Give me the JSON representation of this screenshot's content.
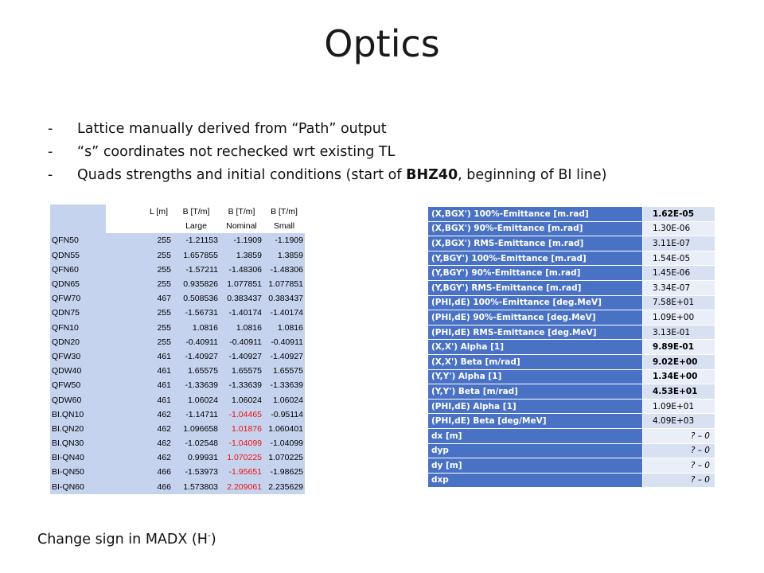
{
  "title": "Optics",
  "bullets": [
    {
      "text": "Lattice manually derived from “Path” output",
      "bold": ""
    },
    {
      "text": "“s” coordinates not rechecked wrt existing TL",
      "bold": ""
    },
    {
      "text": "Quads strengths and initial conditions (start of ",
      "bold": "BHZ40",
      "tail": ", beginning of BI line)"
    }
  ],
  "left_table": {
    "header1": [
      "",
      "L [m]",
      "B [T/m]",
      "B [T/m]",
      "B [T/m]"
    ],
    "header2": [
      "",
      "",
      "Large",
      "Nominal",
      "Small"
    ],
    "rows": [
      {
        "name": "QFN50",
        "L": "255",
        "large": "-1.21153",
        "nominal": "-1.1909",
        "small": "-1.1909",
        "red": false
      },
      {
        "name": "QDN55",
        "L": "255",
        "large": "1.657855",
        "nominal": "1.3859",
        "small": "1.3859",
        "red": false
      },
      {
        "name": "QFN60",
        "L": "255",
        "large": "-1.57211",
        "nominal": "-1.48306",
        "small": "-1.48306",
        "red": false
      },
      {
        "name": "QDN65",
        "L": "255",
        "large": "0.935826",
        "nominal": "1.077851",
        "small": "1.077851",
        "red": false
      },
      {
        "name": "QFW70",
        "L": "467",
        "large": "0.508536",
        "nominal": "0.383437",
        "small": "0.383437",
        "red": false
      },
      {
        "name": "QDN75",
        "L": "255",
        "large": "-1.56731",
        "nominal": "-1.40174",
        "small": "-1.40174",
        "red": false
      },
      {
        "name": "QFN10",
        "L": "255",
        "large": "1.0816",
        "nominal": "1.0816",
        "small": "1.0816",
        "red": false
      },
      {
        "name": "QDN20",
        "L": "255",
        "large": "-0.40911",
        "nominal": "-0.40911",
        "small": "-0.40911",
        "red": false
      },
      {
        "name": "QFW30",
        "L": "461",
        "large": "-1.40927",
        "nominal": "-1.40927",
        "small": "-1.40927",
        "red": false
      },
      {
        "name": "QDW40",
        "L": "461",
        "large": "1.65575",
        "nominal": "1.65575",
        "small": "1.65575",
        "red": false
      },
      {
        "name": "QFW50",
        "L": "461",
        "large": "-1.33639",
        "nominal": "-1.33639",
        "small": "-1.33639",
        "red": false
      },
      {
        "name": "QDW60",
        "L": "461",
        "large": "1.06024",
        "nominal": "1.06024",
        "small": "1.06024",
        "red": false
      },
      {
        "name": "BI.QN10",
        "L": "462",
        "large": "-1.14711",
        "nominal": "-1.04465",
        "small": "-0.95114",
        "red": true
      },
      {
        "name": "BI.QN20",
        "L": "462",
        "large": "1.096658",
        "nominal": "1.01876",
        "small": "1.060401",
        "red": true
      },
      {
        "name": "BI.QN30",
        "L": "462",
        "large": "-1.02548",
        "nominal": "-1.04099",
        "small": "-1.04099",
        "red": true
      },
      {
        "name": "BI-QN40",
        "L": "462",
        "large": "0.99931",
        "nominal": "1.070225",
        "small": "1.070225",
        "red": true
      },
      {
        "name": "BI-QN50",
        "L": "466",
        "large": "-1.53973",
        "nominal": "-1.95651",
        "small": "-1.98625",
        "red": true
      },
      {
        "name": "BI-QN60",
        "L": "466",
        "large": "1.573803",
        "nominal": "2.209061",
        "small": "2.235629",
        "red": true
      }
    ],
    "colors": {
      "highlight": "#c5d3ee",
      "red": "#ee1111"
    }
  },
  "right_table": {
    "rows": [
      {
        "label": "(X,BGX') 100%-Emittance [m.rad]",
        "value": "1.62E-05",
        "style": "bold"
      },
      {
        "label": "(X,BGX') 90%-Emittance [m.rad]",
        "value": "1.30E-06",
        "style": ""
      },
      {
        "label": "(X,BGX') RMS-Emittance [m.rad]",
        "value": "3.11E-07",
        "style": ""
      },
      {
        "label": "(Y,BGY') 100%-Emittance [m.rad]",
        "value": "1.54E-05",
        "style": ""
      },
      {
        "label": "(Y,BGY') 90%-Emittance [m.rad]",
        "value": "1.45E-06",
        "style": ""
      },
      {
        "label": "(Y,BGY') RMS-Emittance [m.rad]",
        "value": "3.34E-07",
        "style": ""
      },
      {
        "label": "(PHI,dE) 100%-Emittance [deg.MeV]",
        "value": "7.58E+01",
        "style": ""
      },
      {
        "label": "(PHI,dE) 90%-Emittance [deg.MeV]",
        "value": "1.09E+00",
        "style": ""
      },
      {
        "label": "(PHI,dE) RMS-Emittance [deg.MeV]",
        "value": "3.13E-01",
        "style": ""
      },
      {
        "label": "(X,X') Alpha [1]",
        "value": "9.89E-01",
        "style": "bold"
      },
      {
        "label": "(X,X') Beta [m/rad]",
        "value": "9.02E+00",
        "style": "bold"
      },
      {
        "label": "(Y,Y') Alpha [1]",
        "value": "1.34E+00",
        "style": "bold"
      },
      {
        "label": "(Y,Y') Beta [m/rad]",
        "value": "4.53E+01",
        "style": "bold"
      },
      {
        "label": "(PHI,dE) Alpha [1]",
        "value": "1.09E+01",
        "style": ""
      },
      {
        "label": "(PHI,dE) Beta [deg/MeV]",
        "value": "4.09E+03",
        "style": ""
      },
      {
        "label": "dx [m]",
        "value": "? – 0",
        "style": "ital"
      },
      {
        "label": "dyp",
        "value": "? – 0",
        "style": "ital"
      },
      {
        "label": "dy [m]",
        "value": "? – 0",
        "style": "ital"
      },
      {
        "label": "dxp",
        "value": "? – 0",
        "style": "ital"
      }
    ],
    "colors": {
      "label_bg": "#4a72c4",
      "value_bg": "#d8e1f1"
    }
  },
  "note": {
    "text": "Change sign in MADX (H",
    "sup": "-",
    "tail": ")"
  }
}
